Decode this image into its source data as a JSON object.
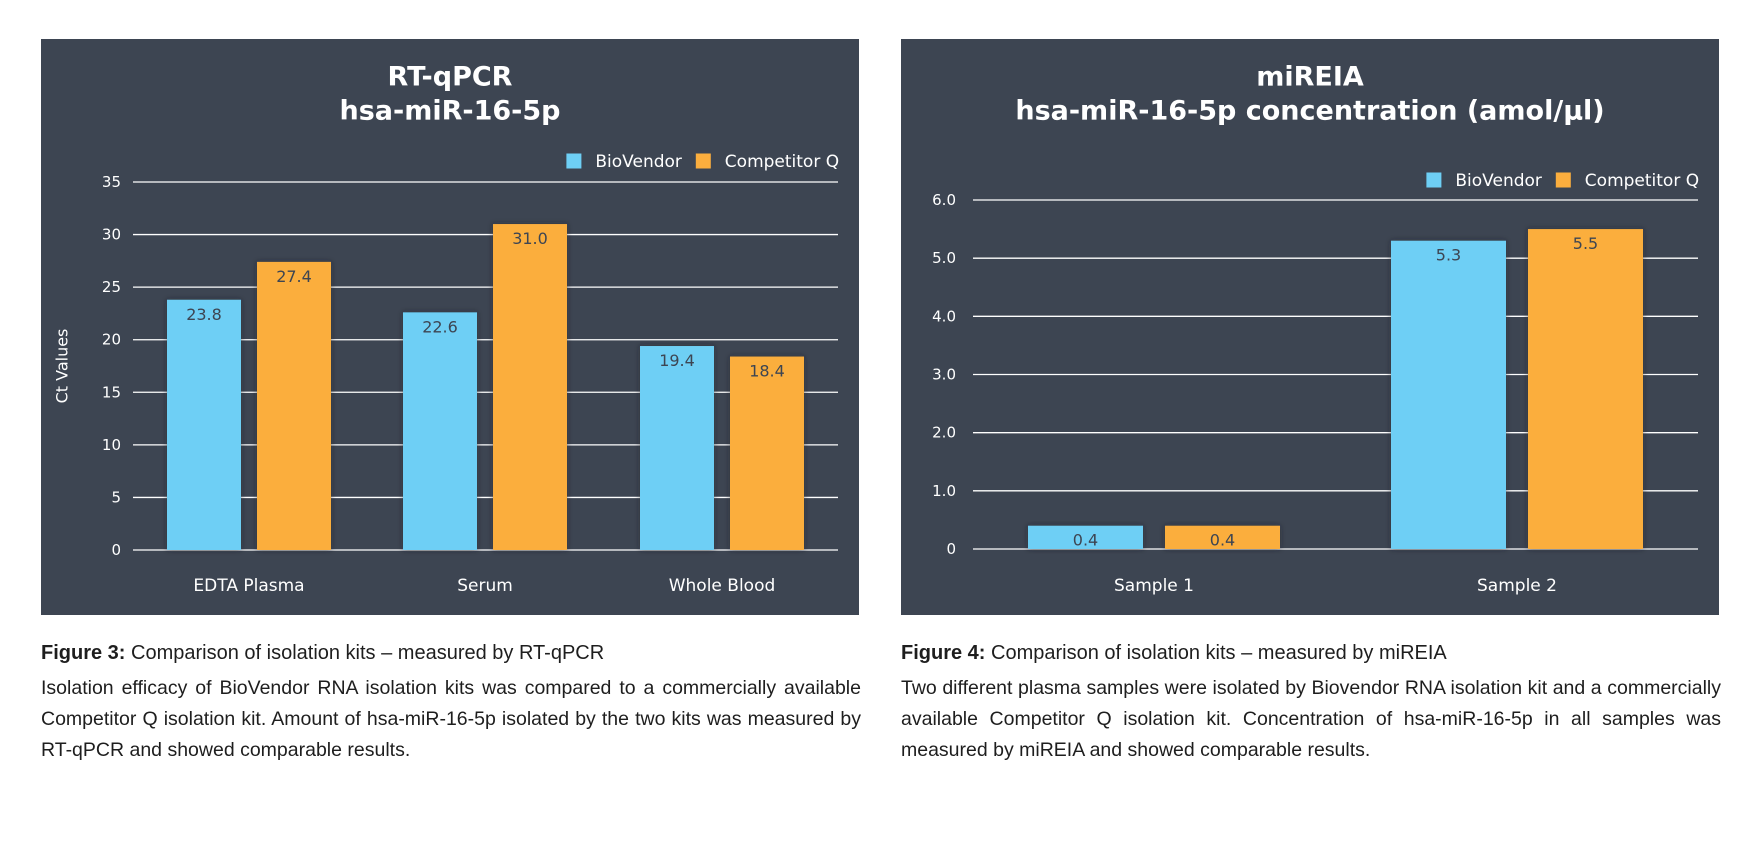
{
  "colors": {
    "panel_bg": "#3d4552",
    "biovendor": "#6ecff5",
    "competitor": "#fbae3e",
    "grid": "#ffffff",
    "value_label": "#3d4552"
  },
  "chart_data": [
    {
      "type": "bar",
      "title": [
        "RT-qPCR",
        "hsa-miR-16-5p"
      ],
      "xlabel": "",
      "ylabel": "Ct Values",
      "ylim": [
        0,
        35
      ],
      "yticks": [
        0,
        5,
        10,
        15,
        20,
        25,
        30,
        35
      ],
      "ytick_labels": [
        "0",
        "5",
        "10",
        "15",
        "20",
        "25",
        "30",
        "35"
      ],
      "grid": true,
      "legend_position": "top-right",
      "categories": [
        "EDTA Plasma",
        "Serum",
        "Whole Blood"
      ],
      "series": [
        {
          "name": "BioVendor",
          "color": "#6ecff5",
          "values": [
            23.8,
            22.6,
            19.4
          ],
          "labels": [
            "23.8",
            "22.6",
            "19.4"
          ]
        },
        {
          "name": "Competitor Q",
          "color": "#fbae3e",
          "values": [
            27.4,
            31.0,
            18.4
          ],
          "labels": [
            "27.4",
            "31.0",
            "18.4"
          ]
        }
      ]
    },
    {
      "type": "bar",
      "title": [
        "miREIA",
        "hsa-miR-16-5p concentration (amol/µl)"
      ],
      "xlabel": "",
      "ylabel": "",
      "ylim": [
        0,
        6
      ],
      "yticks": [
        0,
        1,
        2,
        3,
        4,
        5,
        6
      ],
      "ytick_labels": [
        "0",
        "1.0",
        "2.0",
        "3.0",
        "4.0",
        "5.0",
        "6.0"
      ],
      "grid": true,
      "legend_position": "top-right",
      "categories": [
        "Sample 1",
        "Sample 2"
      ],
      "series": [
        {
          "name": "BioVendor",
          "color": "#6ecff5",
          "values": [
            0.4,
            5.3
          ],
          "labels": [
            "0.4",
            "5.3"
          ]
        },
        {
          "name": "Competitor Q",
          "color": "#fbae3e",
          "values": [
            0.4,
            5.5
          ],
          "labels": [
            "0.4",
            "5.5"
          ]
        }
      ]
    }
  ],
  "captions": [
    {
      "figure_label": "Figure 3:",
      "figure_title": " Comparison of isolation kits – measured by RT-qPCR",
      "body": "Isolation efficacy of BioVendor RNA isolation kits was compared to a commercially available Competitor Q isolation kit. Amount of hsa-miR-16-5p isolated by the two kits was measured by RT-qPCR and showed comparable results."
    },
    {
      "figure_label": "Figure 4:",
      "figure_title": " Comparison of isolation kits – measured by miREIA",
      "body": "Two different plasma samples were isolated by Biovendor RNA isolation kit and a commercially available Competitor Q isolation kit. Concentration of hsa-miR-16-5p in all samples was measured by miREIA and showed comparable results."
    }
  ]
}
